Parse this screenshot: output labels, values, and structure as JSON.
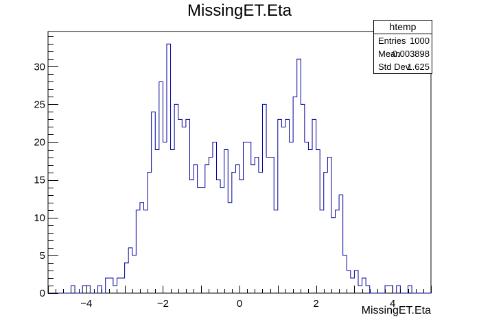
{
  "title": "MissingET.Eta",
  "stats_box": {
    "name": "htemp",
    "entries_label": "Entries",
    "entries_value": "1000",
    "mean_label": "Mean",
    "mean_value": "0.003898",
    "stddev_label": "Std Dev",
    "stddev_value": "1.625"
  },
  "chart_data": {
    "type": "bar",
    "title": "MissingET.Eta",
    "xlabel": "MissingET.Eta",
    "ylabel": "",
    "xlim": [
      -5,
      5
    ],
    "ylim": [
      0,
      34.65
    ],
    "line_color": "#000099",
    "bin_width": 0.1,
    "x_ticks": [
      -4,
      -2,
      0,
      2,
      4
    ],
    "x_tick_labels": [
      "−4",
      "−2",
      "0",
      "2",
      "4"
    ],
    "y_ticks": [
      0,
      5,
      10,
      15,
      20,
      25,
      30
    ],
    "y_tick_labels": [
      "0",
      "5",
      "10",
      "15",
      "20",
      "25",
      "30"
    ],
    "bin_low_edges": [
      -5.0,
      -4.9,
      -4.8,
      -4.7,
      -4.6,
      -4.5,
      -4.4,
      -4.3,
      -4.2,
      -4.1,
      -4.0,
      -3.9,
      -3.8,
      -3.7,
      -3.6,
      -3.5,
      -3.4,
      -3.3,
      -3.2,
      -3.1,
      -3.0,
      -2.9,
      -2.8,
      -2.7,
      -2.6,
      -2.5,
      -2.4,
      -2.3,
      -2.2,
      -2.1,
      -2.0,
      -1.9,
      -1.8,
      -1.7,
      -1.6,
      -1.5,
      -1.4,
      -1.3,
      -1.2,
      -1.1,
      -1.0,
      -0.9,
      -0.8,
      -0.7,
      -0.6,
      -0.5,
      -0.4,
      -0.3,
      -0.2,
      -0.1,
      0.0,
      0.1,
      0.2,
      0.3,
      0.4,
      0.5,
      0.6,
      0.7,
      0.8,
      0.9,
      1.0,
      1.1,
      1.2,
      1.3,
      1.4,
      1.5,
      1.6,
      1.7,
      1.8,
      1.9,
      2.0,
      2.1,
      2.2,
      2.3,
      2.4,
      2.5,
      2.6,
      2.7,
      2.8,
      2.9,
      3.0,
      3.1,
      3.2,
      3.3,
      3.4,
      3.5,
      3.6,
      3.7,
      3.8,
      3.9,
      4.0,
      4.1,
      4.2,
      4.3,
      4.4,
      4.5,
      4.6,
      4.7,
      4.8,
      4.9
    ],
    "values": [
      0,
      0,
      0,
      0,
      0,
      0,
      1,
      0,
      0,
      1,
      1,
      0,
      0,
      1,
      0,
      2,
      2,
      1,
      2,
      2,
      4,
      6,
      5,
      11,
      12,
      11,
      16,
      24,
      19,
      28,
      20,
      33,
      19,
      25,
      23,
      22,
      23,
      15,
      17,
      14,
      14,
      17,
      18,
      20,
      15,
      14,
      19,
      12,
      16,
      17,
      15,
      20,
      20,
      17,
      18,
      16,
      25,
      18,
      18,
      11,
      23,
      22,
      23,
      20,
      26,
      31,
      25,
      20,
      19,
      23,
      19,
      11,
      16,
      18,
      10,
      11,
      13,
      5,
      3,
      2,
      3,
      1,
      2,
      1,
      0,
      0,
      0,
      0,
      1,
      1,
      0,
      1,
      0,
      0,
      1,
      0,
      0,
      0,
      0,
      0
    ]
  }
}
